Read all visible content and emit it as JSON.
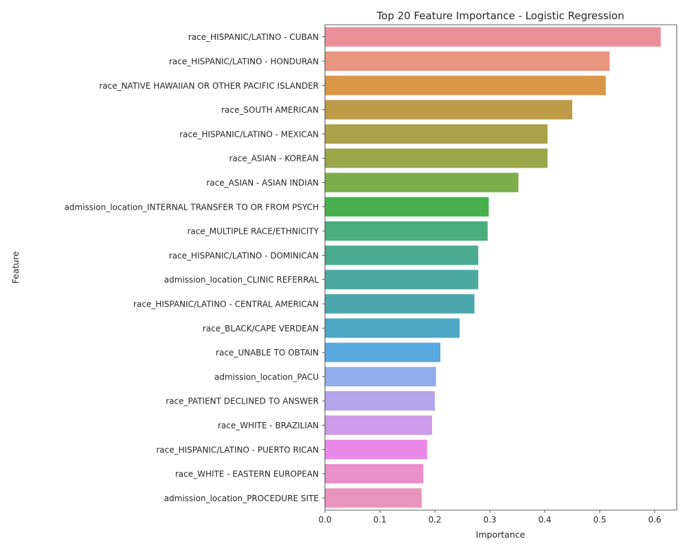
{
  "chart_data": {
    "type": "bar",
    "orientation": "horizontal",
    "title": "Top 20 Feature Importance - Logistic Regression",
    "xlabel": "Importance",
    "ylabel": "Feature",
    "xlim": [
      0,
      0.64
    ],
    "xticks": [
      "0.0",
      "0.1",
      "0.2",
      "0.3",
      "0.4",
      "0.5",
      "0.6"
    ],
    "grid": false,
    "legend": "none",
    "categories": [
      "race_HISPANIC/LATINO - CUBAN",
      "race_HISPANIC/LATINO - HONDURAN",
      "race_NATIVE HAWAIIAN OR OTHER PACIFIC ISLANDER",
      "race_SOUTH AMERICAN",
      "race_HISPANIC/LATINO - MEXICAN",
      "race_ASIAN - KOREAN",
      "race_ASIAN - ASIAN INDIAN",
      "admission_location_INTERNAL TRANSFER TO OR FROM PSYCH",
      "race_MULTIPLE RACE/ETHNICITY",
      "race_HISPANIC/LATINO - DOMINICAN",
      "admission_location_CLINIC REFERRAL",
      "race_HISPANIC/LATINO - CENTRAL AMERICAN",
      "race_BLACK/CAPE VERDEAN",
      "race_UNABLE TO OBTAIN",
      "admission_location_PACU",
      "race_PATIENT DECLINED TO ANSWER",
      "race_WHITE - BRAZILIAN",
      "race_HISPANIC/LATINO - PUERTO RICAN",
      "race_WHITE - EASTERN EUROPEAN",
      "admission_location_PROCEDURE SITE"
    ],
    "values": [
      0.611,
      0.518,
      0.511,
      0.45,
      0.405,
      0.405,
      0.352,
      0.298,
      0.296,
      0.279,
      0.279,
      0.272,
      0.245,
      0.21,
      0.202,
      0.2,
      0.195,
      0.186,
      0.179,
      0.176
    ],
    "colors": [
      "#ea8f99",
      "#e8957f",
      "#da9646",
      "#bd9a48",
      "#aba14b",
      "#99a749",
      "#7cae4a",
      "#45b04d",
      "#49ad7c",
      "#4aab8f",
      "#4ba99f",
      "#4ca8ad",
      "#4ea8c3",
      "#58a9df",
      "#91acea",
      "#b3a4ec",
      "#cd9be9",
      "#e889e8",
      "#e88fcc",
      "#e894bd"
    ]
  }
}
